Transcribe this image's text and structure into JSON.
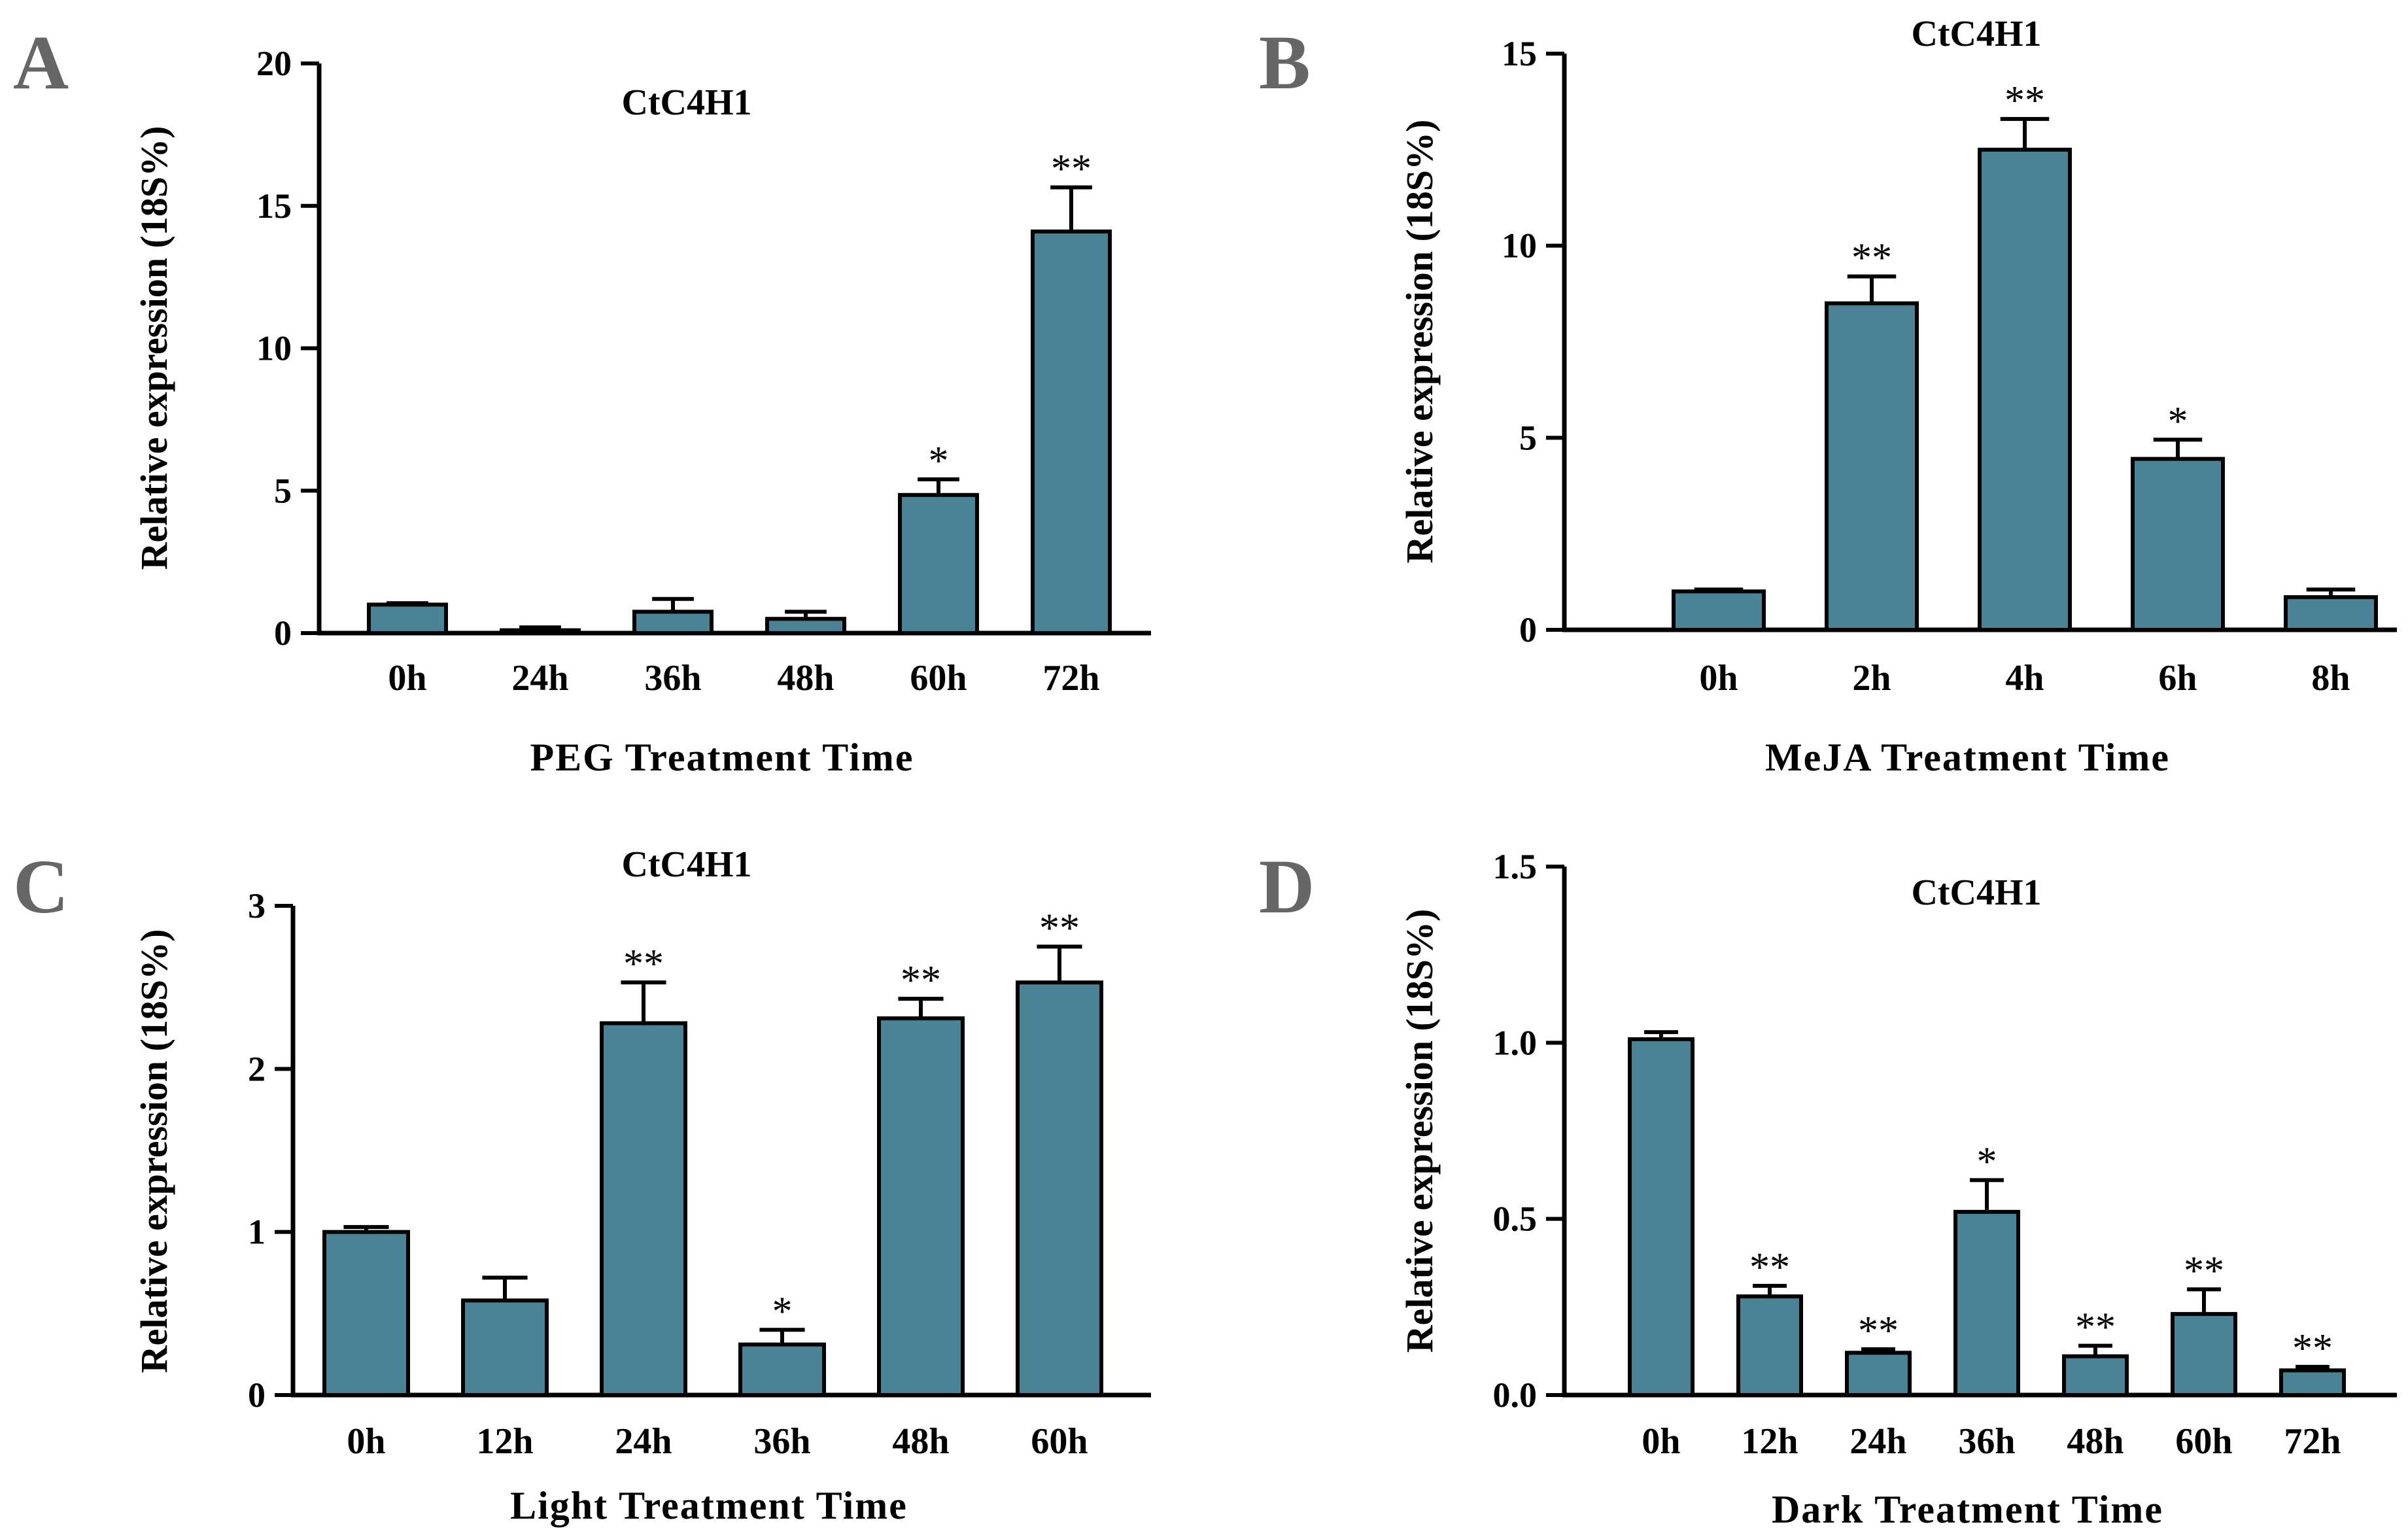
{
  "colors": {
    "bar": "#4a8395",
    "stroke": "#000000",
    "letter": "#666666"
  },
  "chart_data": [
    {
      "panel": "A",
      "type": "bar",
      "title": "CtC4H1",
      "xlabel": "PEG Treatment Time",
      "ylabel": "Relative expression (18S%)",
      "ylim": [
        0,
        20
      ],
      "yticks": [
        "0",
        "5",
        "10",
        "15",
        "20"
      ],
      "categories": [
        "0h",
        "24h",
        "36h",
        "48h",
        "60h",
        "72h"
      ],
      "values": [
        1.0,
        0.1,
        0.75,
        0.5,
        4.85,
        14.1
      ],
      "errors": [
        0.05,
        0.1,
        0.45,
        0.25,
        0.55,
        1.55
      ],
      "significance": [
        "",
        "",
        "",
        "",
        "*",
        "**"
      ]
    },
    {
      "panel": "B",
      "type": "bar",
      "title": "CtC4H1",
      "xlabel": "MeJA Treatment Time",
      "ylabel": "Relative expression (18S%)",
      "ylim": [
        0,
        15
      ],
      "yticks": [
        "0",
        "5",
        "10",
        "15"
      ],
      "categories": [
        "0h",
        "2h",
        "4h",
        "6h",
        "8h"
      ],
      "values": [
        1.0,
        8.5,
        12.5,
        4.45,
        0.85
      ],
      "errors": [
        0.05,
        0.7,
        0.8,
        0.5,
        0.2
      ],
      "significance": [
        "",
        "**",
        "**",
        "*",
        ""
      ]
    },
    {
      "panel": "C",
      "type": "bar",
      "title": "CtC4H1",
      "xlabel": "Light Treatment Time",
      "ylabel": "Relative expression (18S%)",
      "ylim": [
        0,
        3
      ],
      "yticks": [
        "0",
        "1",
        "2",
        "3"
      ],
      "categories": [
        "0h",
        "12h",
        "24h",
        "36h",
        "48h",
        "60h"
      ],
      "values": [
        1.0,
        0.58,
        2.28,
        0.31,
        2.31,
        2.53
      ],
      "errors": [
        0.03,
        0.14,
        0.25,
        0.09,
        0.12,
        0.22
      ],
      "significance": [
        "",
        "",
        "**",
        "*",
        "**",
        "**"
      ]
    },
    {
      "panel": "D",
      "type": "bar",
      "title": "CtC4H1",
      "xlabel": "Dark Treatment Time",
      "ylabel": "Relative expression (18S%)",
      "ylim": [
        0,
        1.5
      ],
      "yticks": [
        "0.0",
        "0.5",
        "1.0",
        "1.5"
      ],
      "categories": [
        "0h",
        "12h",
        "24h",
        "36h",
        "48h",
        "60h",
        "72h"
      ],
      "values": [
        1.01,
        0.28,
        0.12,
        0.52,
        0.11,
        0.23,
        0.07
      ],
      "errors": [
        0.02,
        0.03,
        0.01,
        0.09,
        0.03,
        0.07,
        0.01
      ],
      "significance": [
        "",
        "**",
        "**",
        "*",
        "**",
        "**",
        "**"
      ]
    }
  ]
}
